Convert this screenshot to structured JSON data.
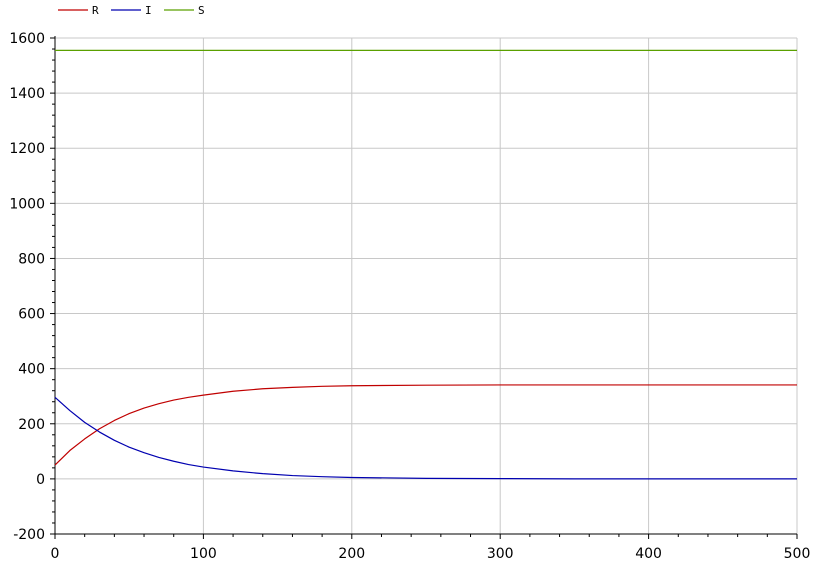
{
  "chart_data": {
    "type": "line",
    "title": "",
    "xlabel": "",
    "ylabel": "",
    "xlim": [
      0,
      500
    ],
    "ylim": [
      -200,
      1600
    ],
    "x_ticks": [
      0,
      100,
      200,
      300,
      400,
      500
    ],
    "y_ticks": [
      -200,
      0,
      200,
      400,
      600,
      800,
      1000,
      1200,
      1400,
      1600
    ],
    "x_tick_labels": [
      "0",
      "100",
      "200",
      "300",
      "400",
      "500"
    ],
    "y_tick_labels": [
      "-200",
      "0",
      "200",
      "400",
      "600",
      "800",
      "1000",
      "1200",
      "1400",
      "1600"
    ],
    "grid": true,
    "legend": {
      "position": "top-left",
      "orientation": "horizontal"
    },
    "series": [
      {
        "name": "R",
        "color": "#c00000",
        "x": [
          0,
          10,
          20,
          30,
          40,
          50,
          60,
          70,
          80,
          90,
          100,
          120,
          140,
          160,
          180,
          200,
          250,
          300,
          350,
          400,
          450,
          500
        ],
        "y": [
          50,
          103,
          145,
          182,
          212,
          237,
          257,
          273,
          286,
          296,
          304,
          318,
          327,
          332,
          336,
          338,
          340,
          341,
          341,
          341,
          341,
          341
        ]
      },
      {
        "name": "I",
        "color": "#0000b0",
        "x": [
          0,
          10,
          20,
          30,
          40,
          50,
          60,
          70,
          80,
          90,
          100,
          120,
          140,
          160,
          180,
          200,
          250,
          300,
          350,
          400,
          450,
          500
        ],
        "y": [
          296,
          248,
          205,
          170,
          140,
          115,
          95,
          78,
          64,
          52,
          43,
          29,
          19,
          12,
          8,
          5,
          2,
          1,
          0,
          0,
          0,
          0
        ]
      },
      {
        "name": "S",
        "color": "#5aa000",
        "x": [
          0,
          500
        ],
        "y": [
          1555,
          1555
        ]
      }
    ]
  }
}
